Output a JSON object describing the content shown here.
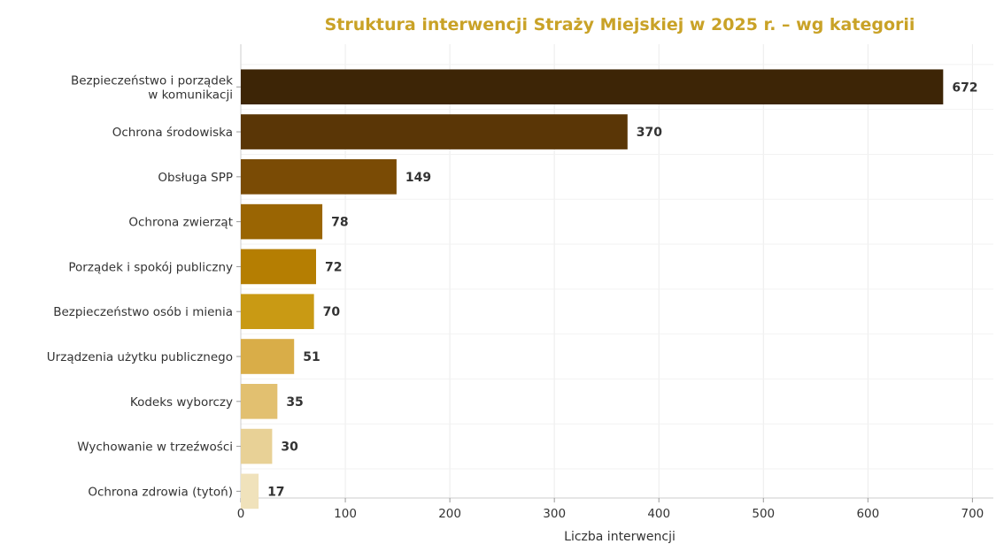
{
  "chart_data": {
    "type": "bar",
    "orientation": "horizontal",
    "title": "Struktura interwencji Straży Miejskiej w 2025 r. – wg kategorii",
    "xlabel": "Liczba interwencji",
    "ylabel": "",
    "categories": [
      [
        "Bezpieczeństwo i porządek",
        "w komunikacji"
      ],
      [
        "Ochrona środowiska"
      ],
      [
        "Obsługa SPP"
      ],
      [
        "Ochrona zwierząt"
      ],
      [
        "Porządek i spokój publiczny"
      ],
      [
        "Bezpieczeństwo osób i mienia"
      ],
      [
        "Urządzenia użytku publicznego"
      ],
      [
        "Kodeks wyborczy"
      ],
      [
        "Wychowanie w trzeźwości"
      ],
      [
        "Ochrona zdrowia (tytoń)"
      ]
    ],
    "values": [
      672,
      370,
      149,
      78,
      72,
      70,
      51,
      35,
      30,
      17
    ],
    "xlim": [
      0,
      720
    ],
    "xticks": [
      0,
      100,
      200,
      300,
      400,
      500,
      600,
      700
    ],
    "grid": true,
    "colors": [
      "#3d2506",
      "#5a3606",
      "#7a4b05",
      "#9a6503",
      "#b57e02",
      "#c99a14",
      "#d9ad48",
      "#e2c070",
      "#e8d196",
      "#f0e2bb"
    ],
    "title_color": "#c9a227"
  }
}
